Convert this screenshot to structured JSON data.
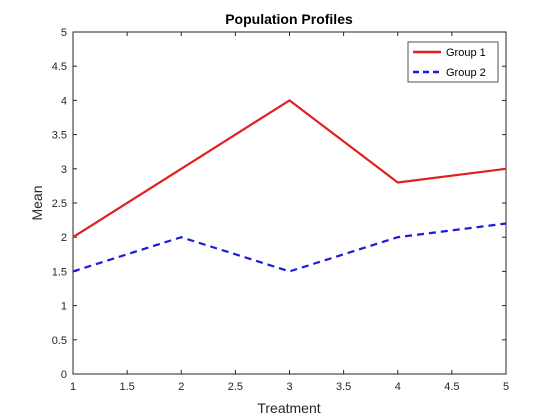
{
  "chart_data": {
    "type": "line",
    "title": "Population Profiles",
    "xlabel": "Treatment",
    "ylabel": "Mean",
    "xlim": [
      1,
      5
    ],
    "ylim": [
      0,
      5
    ],
    "x_ticks": [
      1,
      1.5,
      2,
      2.5,
      3,
      3.5,
      4,
      4.5,
      5
    ],
    "y_ticks": [
      0,
      0.5,
      1,
      1.5,
      2,
      2.5,
      3,
      3.5,
      4,
      4.5,
      5
    ],
    "grid": false,
    "legend_position": "top-right",
    "x": [
      1,
      2,
      3,
      4,
      5
    ],
    "series": [
      {
        "name": "Group 1",
        "values": [
          2,
          3,
          4,
          2.8,
          3
        ],
        "color": "#e0211f",
        "line_style": "solid"
      },
      {
        "name": "Group 2",
        "values": [
          1.5,
          2,
          1.5,
          2,
          2.2
        ],
        "color": "#1c1cd9",
        "line_style": "dashed"
      }
    ]
  }
}
